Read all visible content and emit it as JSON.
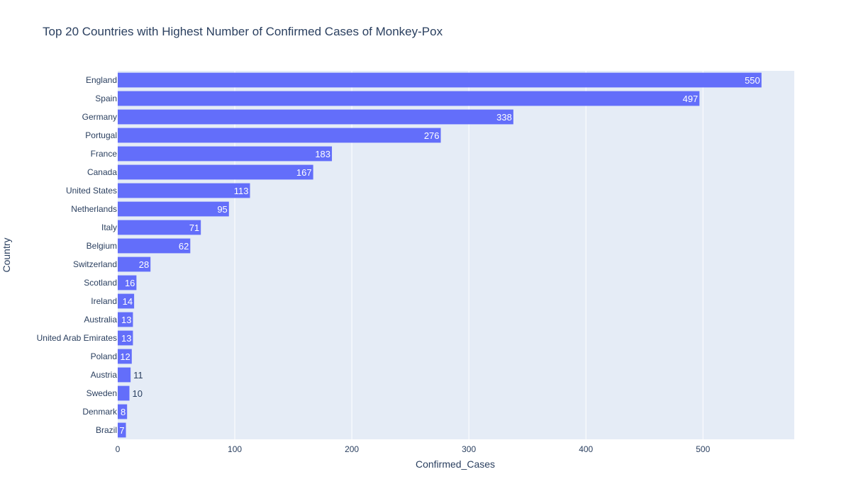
{
  "chart_data": {
    "type": "bar",
    "orientation": "horizontal",
    "title": "Top 20 Countries with Highest Number of Confirmed Cases of Monkey-Pox",
    "xlabel": "Confirmed_Cases",
    "ylabel": "Country",
    "xlim": [
      0,
      578
    ],
    "xticks": [
      0,
      100,
      200,
      300,
      400,
      500
    ],
    "grid": true,
    "categories": [
      "England",
      "Spain",
      "Germany",
      "Portugal",
      "France",
      "Canada",
      "United States",
      "Netherlands",
      "Italy",
      "Belgium",
      "Switzerland",
      "Scotland",
      "Ireland",
      "Australia",
      "United Arab Emirates",
      "Poland",
      "Austria",
      "Sweden",
      "Denmark",
      "Brazil"
    ],
    "values": [
      550,
      497,
      338,
      276,
      183,
      167,
      113,
      95,
      71,
      62,
      28,
      16,
      14,
      13,
      13,
      12,
      11,
      10,
      8,
      7
    ],
    "colors": {
      "bar": "#636efa",
      "plot_bg": "#e5ecf6",
      "grid": "#ffffff",
      "text": "#2a3f5f"
    }
  }
}
